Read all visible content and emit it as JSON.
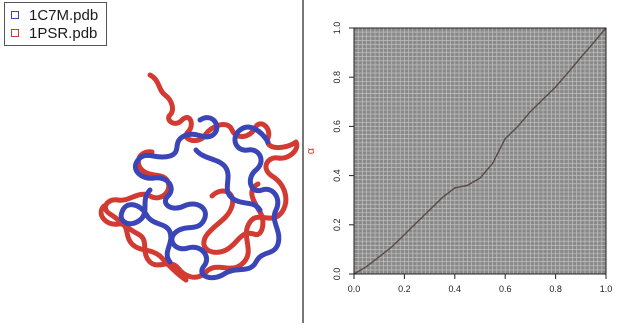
{
  "legend": {
    "items": [
      {
        "label": "1C7M.pdb",
        "color": "#3a46b8"
      },
      {
        "label": "1PSR.pdb",
        "color": "#d23a32"
      }
    ]
  },
  "colors": {
    "structure_a": "#3a46b8",
    "structure_b": "#d23a32",
    "grid_background": "#8a8a8a",
    "grid_lines": "#c8c8c8",
    "path_color": "#5a4a4a",
    "y_label_color": "#d23a32"
  },
  "chart_data": {
    "type": "line",
    "xlabel": "",
    "ylabel": "α",
    "xlim": [
      0.0,
      1.0
    ],
    "ylim": [
      0.0,
      1.0
    ],
    "x_ticks": [
      "0.0",
      "0.2",
      "0.4",
      "0.6",
      "0.8",
      "1.0"
    ],
    "y_ticks": [
      "0.0",
      "0.2",
      "0.4",
      "0.6",
      "0.8",
      "1.0"
    ],
    "grid": true,
    "series": [
      {
        "x": [
          0.0,
          0.05,
          0.1,
          0.15,
          0.2,
          0.25,
          0.3,
          0.35,
          0.4,
          0.45,
          0.5,
          0.55,
          0.6,
          0.65,
          0.7,
          0.75,
          0.8,
          0.85,
          0.9,
          0.95,
          1.0
        ],
        "y": [
          0.0,
          0.03,
          0.07,
          0.11,
          0.16,
          0.21,
          0.26,
          0.31,
          0.35,
          0.36,
          0.39,
          0.45,
          0.55,
          0.6,
          0.66,
          0.71,
          0.76,
          0.82,
          0.88,
          0.94,
          1.0
        ]
      }
    ]
  }
}
